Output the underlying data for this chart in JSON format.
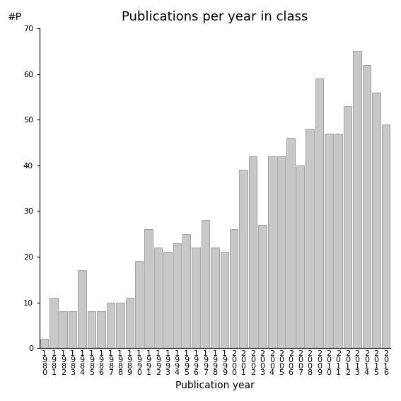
{
  "title": "Publications per year in class",
  "xlabel": "Publication year",
  "ylabel": "#P",
  "ylim": [
    0,
    70
  ],
  "yticks": [
    0,
    10,
    20,
    30,
    40,
    50,
    60,
    70
  ],
  "years": [
    "1980",
    "1981",
    "1982",
    "1983",
    "1984",
    "1985",
    "1986",
    "1987",
    "1988",
    "1989",
    "1990",
    "1991",
    "1992",
    "1993",
    "1994",
    "1995",
    "1996",
    "1997",
    "1998",
    "1999",
    "2000",
    "2001",
    "2002",
    "2003",
    "2004",
    "2005",
    "2006",
    "2007",
    "2008",
    "2009",
    "2010",
    "2011",
    "2012",
    "2013",
    "2014",
    "2015",
    "2016"
  ],
  "values": [
    2,
    11,
    8,
    8,
    17,
    8,
    8,
    10,
    10,
    11,
    19,
    26,
    22,
    21,
    23,
    25,
    22,
    28,
    22,
    21,
    26,
    39,
    42,
    27,
    42,
    42,
    46,
    40,
    48,
    59,
    47,
    47,
    53,
    65,
    62,
    56,
    49
  ],
  "bar_color": "#c8c8c8",
  "bar_edge_color": "#888888",
  "background_color": "#ffffff",
  "title_fontsize": 13,
  "label_fontsize": 10,
  "tick_fontsize": 8
}
